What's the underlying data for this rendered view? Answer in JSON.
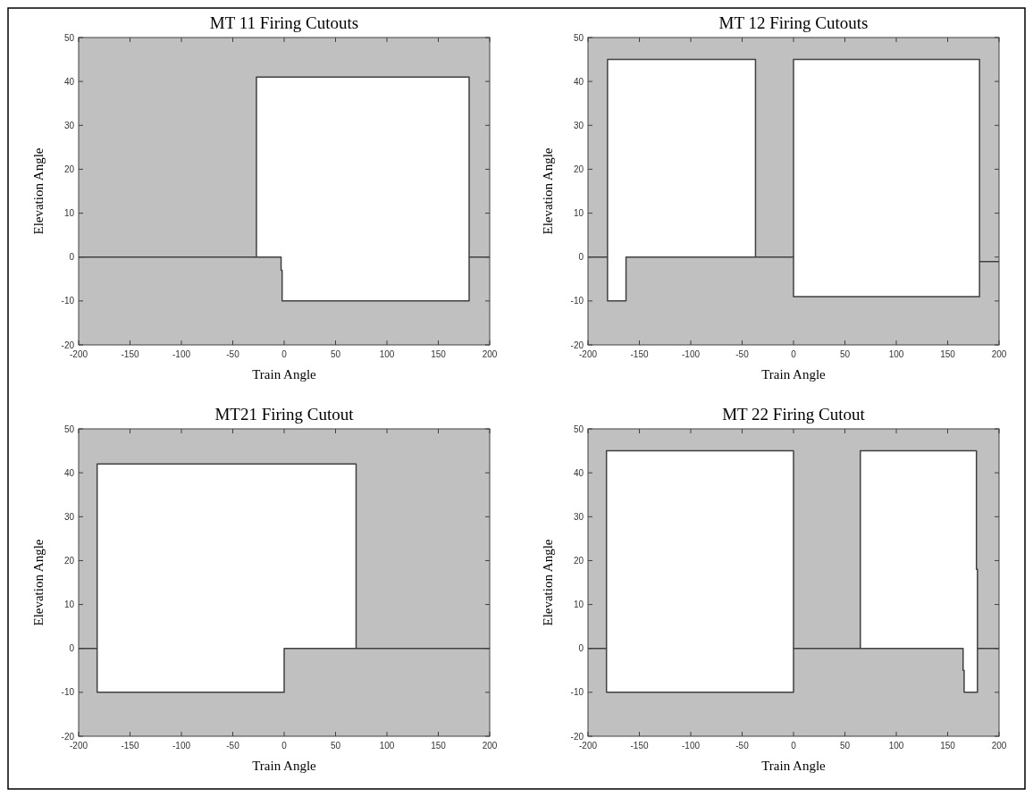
{
  "chart_data": [
    {
      "type": "line",
      "title": "MT 11 Firing Cutouts",
      "xlabel": "Train Angle",
      "ylabel": "Elevation Angle",
      "xlim": [
        -200,
        200
      ],
      "ylim": [
        -20,
        50
      ],
      "xticks": [
        -200,
        -150,
        -100,
        -50,
        0,
        50,
        100,
        150,
        200
      ],
      "yticks": [
        -20,
        -10,
        0,
        10,
        20,
        30,
        40,
        50
      ],
      "series": [
        {
          "color": "#404040",
          "x": [
            -200,
            -27,
            -3,
            -3,
            -2,
            -2,
            180,
            180,
            200
          ],
          "values": [
            0,
            0,
            0,
            -3,
            -3,
            -10,
            -10,
            0,
            0
          ]
        },
        {
          "color": "#404040",
          "x": [
            -27,
            -27,
            -3,
            -3,
            -2,
            -2,
            180,
            180
          ],
          "values": [
            0,
            41,
            41,
            41,
            41,
            41,
            41,
            0
          ],
          "upper": [
            0,
            41,
            41,
            41,
            41,
            41,
            41,
            0
          ],
          "lower": [
            0,
            0,
            0,
            -3,
            -3,
            -10,
            -10,
            -10
          ]
        }
      ]
    },
    {
      "type": "line",
      "title": "MT 12 Firing Cutouts",
      "xlabel": "Train Angle",
      "ylabel": "Elevation Angle",
      "xlim": [
        -200,
        200
      ],
      "ylim": [
        -20,
        50
      ],
      "xticks": [
        -200,
        -150,
        -100,
        -50,
        0,
        50,
        100,
        150,
        200
      ],
      "yticks": [
        -20,
        -10,
        0,
        10,
        20,
        30,
        40,
        50
      ],
      "series": [
        {
          "color": "#404040",
          "x": [
            -200,
            -181,
            -181,
            -163,
            -163,
            -37,
            0,
            0,
            181,
            181,
            200
          ],
          "values": [
            0,
            0,
            -10,
            -10,
            0,
            0,
            0,
            -9,
            -9,
            -1,
            -1
          ]
        },
        {
          "color": "#404040",
          "x": [
            -181,
            -181,
            -163,
            -163,
            -37,
            -37
          ],
          "values": [
            0,
            45,
            45,
            45,
            45,
            0
          ],
          "upper": [
            0,
            45,
            45,
            45,
            45,
            0
          ],
          "lower": [
            -10,
            -10,
            -10,
            0,
            0,
            0
          ]
        },
        {
          "color": "#404040",
          "x": [
            0,
            0,
            181,
            181
          ],
          "values": [
            0,
            45,
            45,
            -1
          ],
          "upper": [
            0,
            45,
            45,
            -1
          ],
          "lower": [
            -9,
            -9,
            -9,
            -9
          ]
        }
      ]
    },
    {
      "type": "line",
      "title": "MT21 Firing Cutout",
      "xlabel": "Train Angle",
      "ylabel": "Elevation Angle",
      "xlim": [
        -200,
        200
      ],
      "ylim": [
        -20,
        50
      ],
      "xticks": [
        -200,
        -150,
        -100,
        -50,
        0,
        50,
        100,
        150,
        200
      ],
      "yticks": [
        -20,
        -10,
        0,
        10,
        20,
        30,
        40,
        50
      ],
      "series": [
        {
          "color": "#404040",
          "x": [
            -200,
            -182,
            -182,
            0,
            0,
            200
          ],
          "values": [
            0,
            0,
            -10,
            -10,
            0,
            0
          ]
        },
        {
          "color": "#404040",
          "x": [
            -182,
            -182,
            0,
            0,
            70,
            70
          ],
          "values": [
            0,
            42,
            42,
            42,
            42,
            0
          ],
          "upper": [
            0,
            42,
            42,
            42,
            42,
            0
          ],
          "lower": [
            -10,
            -10,
            -10,
            0,
            0,
            0
          ]
        }
      ]
    },
    {
      "type": "line",
      "title": "MT 22 Firing Cutout",
      "xlabel": "Train Angle",
      "ylabel": "Elevation Angle",
      "xlim": [
        -200,
        200
      ],
      "ylim": [
        -20,
        50
      ],
      "xticks": [
        -200,
        -150,
        -100,
        -50,
        0,
        50,
        100,
        150,
        200
      ],
      "yticks": [
        -20,
        -10,
        0,
        10,
        20,
        30,
        40,
        50
      ],
      "series": [
        {
          "color": "#404040",
          "x": [
            -200,
            -182,
            -182,
            0,
            0,
            165,
            165,
            166,
            166,
            179,
            179,
            200
          ],
          "values": [
            0,
            0,
            -10,
            -10,
            0,
            0,
            -5,
            -5,
            -10,
            -10,
            0,
            0
          ]
        },
        {
          "color": "#404040",
          "x": [
            -182,
            -182,
            0,
            0
          ],
          "values": [
            0,
            45,
            45,
            0
          ],
          "upper": [
            0,
            45,
            45,
            0
          ],
          "lower": [
            -10,
            -10,
            -10,
            -10
          ]
        },
        {
          "color": "#404040",
          "x": [
            65,
            65,
            165,
            165,
            166,
            166,
            178,
            178,
            179,
            179
          ],
          "values": [
            0,
            45,
            45,
            45,
            45,
            45,
            45,
            18,
            18,
            0
          ],
          "upper": [
            0,
            45,
            45,
            45,
            45,
            45,
            45,
            18,
            18,
            0
          ],
          "lower": [
            0,
            0,
            0,
            -5,
            -5,
            -10,
            -10,
            -10,
            -10,
            -10
          ]
        }
      ]
    }
  ]
}
